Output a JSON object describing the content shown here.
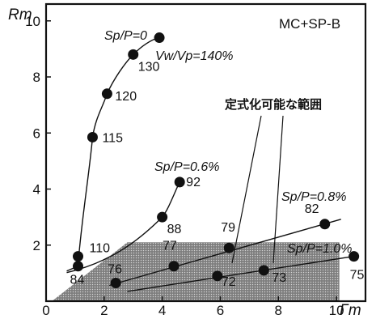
{
  "chart_data": {
    "type": "scatter",
    "title": "MC+SP-B",
    "xlabel": "Γm",
    "ylabel": "Rm",
    "xlim": [
      0,
      11
    ],
    "ylim": [
      0,
      10.6
    ],
    "xticks": [
      "0",
      "2",
      "4",
      "6",
      "8",
      "10"
    ],
    "yticks": [
      "2",
      "4",
      "6",
      "8",
      "10"
    ],
    "grid": false,
    "annotation": "定式化可能な範囲",
    "region": [
      [
        0.2,
        0
      ],
      [
        2.8,
        2.1
      ],
      [
        10.1,
        2.1
      ],
      [
        10.1,
        0
      ]
    ],
    "series": [
      {
        "name": "Sp/P=0",
        "extra_label": "Vw/Vp=140%",
        "points": [
          {
            "x": 1.1,
            "y": 1.25,
            "label": "84"
          },
          {
            "x": 1.1,
            "y": 1.6,
            "label": "110"
          },
          {
            "x": 1.6,
            "y": 5.85,
            "label": "115"
          },
          {
            "x": 2.1,
            "y": 7.4,
            "label": "120"
          },
          {
            "x": 3.0,
            "y": 8.8,
            "label": "130"
          },
          {
            "x": 3.9,
            "y": 9.4,
            "label": ""
          }
        ]
      },
      {
        "name": "Sp/P=0.6%",
        "points": [
          {
            "x": 4.0,
            "y": 3.0,
            "label": "88"
          },
          {
            "x": 4.6,
            "y": 4.25,
            "label": "92"
          }
        ]
      },
      {
        "name": "Sp/P=0.8%",
        "points": [
          {
            "x": 2.4,
            "y": 0.65,
            "label": "76"
          },
          {
            "x": 4.4,
            "y": 1.25,
            "label": "77"
          },
          {
            "x": 6.3,
            "y": 1.9,
            "label": "79"
          },
          {
            "x": 9.6,
            "y": 2.75,
            "label": "82"
          }
        ]
      },
      {
        "name": "Sp/P=1.0%",
        "points": [
          {
            "x": 5.9,
            "y": 0.9,
            "label": "72"
          },
          {
            "x": 7.5,
            "y": 1.1,
            "label": "73"
          },
          {
            "x": 10.6,
            "y": 1.6,
            "label": "75"
          }
        ]
      }
    ]
  }
}
